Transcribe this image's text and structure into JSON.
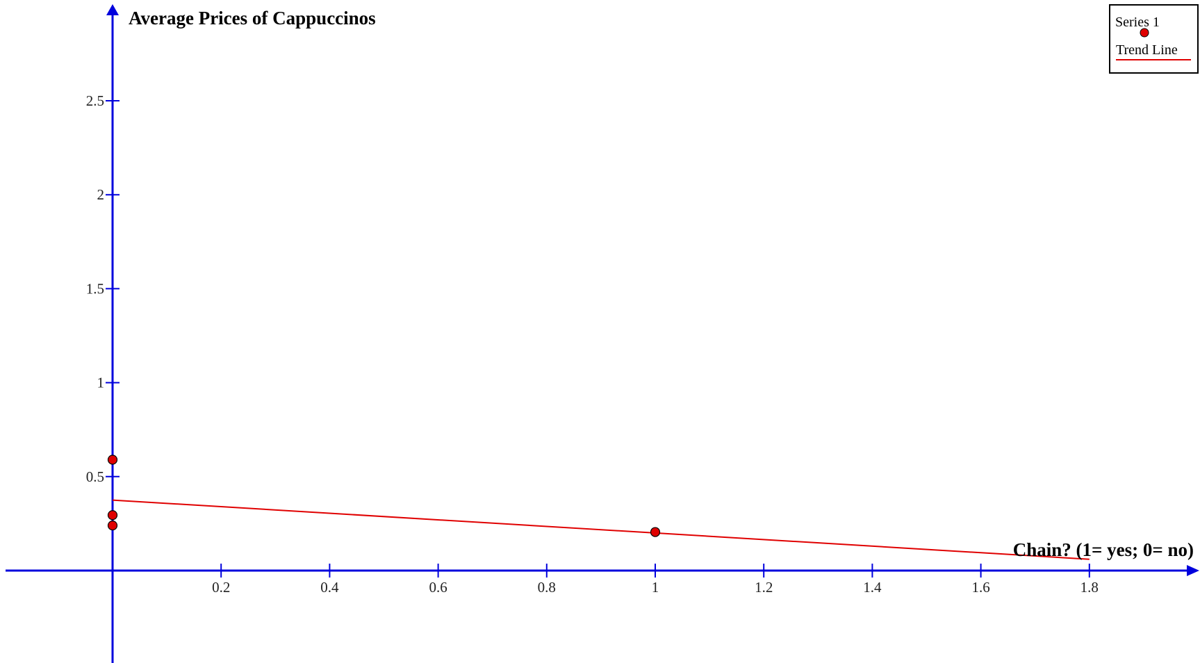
{
  "chart_data": {
    "type": "scatter",
    "title": "Average Prices of Cappuccinos",
    "xlabel": "Chain? (1= yes; 0= no)",
    "ylabel": "",
    "xlim": [
      -0.2,
      2.0
    ],
    "ylim": [
      -0.5,
      2.9
    ],
    "x_ticks": [
      0.2,
      0.4,
      0.6,
      0.8,
      1,
      1.2,
      1.4,
      1.6,
      1.8
    ],
    "x_tick_labels": [
      "0.2",
      "0.4",
      "0.6",
      "0.8",
      "1",
      "1.2",
      "1.4",
      "1.6",
      "1.8"
    ],
    "y_ticks": [
      0.5,
      1,
      1.5,
      2,
      2.5
    ],
    "y_tick_labels": [
      "0.5",
      "1",
      "1.5",
      "2",
      "2.5"
    ],
    "grid": false,
    "legend_position": "top-right",
    "series": [
      {
        "name": "Series 1",
        "color": "#e00000",
        "x": [
          0,
          0,
          0,
          1
        ],
        "y": [
          0.59,
          0.295,
          0.24,
          0.205
        ]
      }
    ],
    "trend_line": {
      "name": "Trend Line",
      "color": "#e00000",
      "x": [
        0,
        1.8
      ],
      "y": [
        0.375,
        0.06
      ]
    },
    "axis_color": "#0000dd"
  }
}
